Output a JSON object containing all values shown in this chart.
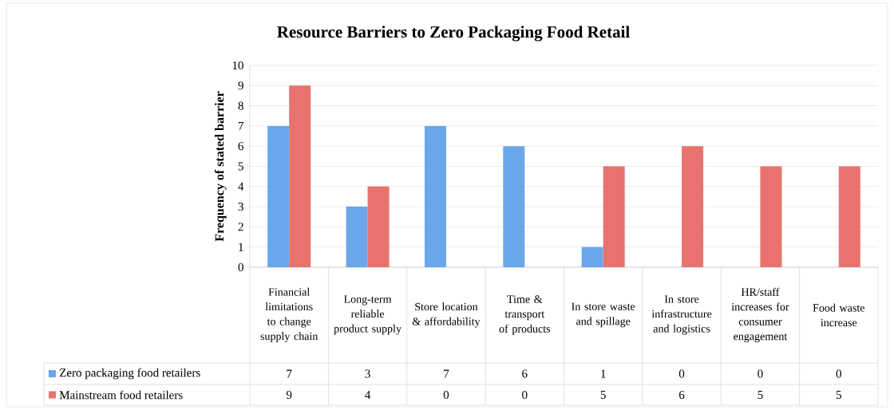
{
  "chart_data": {
    "type": "bar",
    "title": "Resource Barriers to Zero Packaging Food Retail",
    "ylabel": "Frequency of stated barrier",
    "categories": [
      "Financial limitations to change supply chain",
      "Long-term reliable product supply",
      "Store location & affordability",
      "Time & transport of products",
      "In store waste and spillage",
      "In store infrastructure and logistics",
      "HR/staff increases for consumer engagement",
      "Food waste increase"
    ],
    "series": [
      {
        "name": "Zero packaging food retailers",
        "color": "#6aa6ea",
        "values": [
          7,
          3,
          7,
          6,
          1,
          0,
          0,
          0
        ]
      },
      {
        "name": "Mainstream food retailers",
        "color": "#e8736e",
        "values": [
          9,
          4,
          0,
          0,
          5,
          6,
          5,
          5
        ]
      }
    ],
    "ylim": [
      0,
      10
    ],
    "yticks": [
      0,
      1,
      2,
      3,
      4,
      5,
      6,
      7,
      8,
      9,
      10
    ],
    "grid": "y",
    "legend": "bottom",
    "data_labels": true
  }
}
